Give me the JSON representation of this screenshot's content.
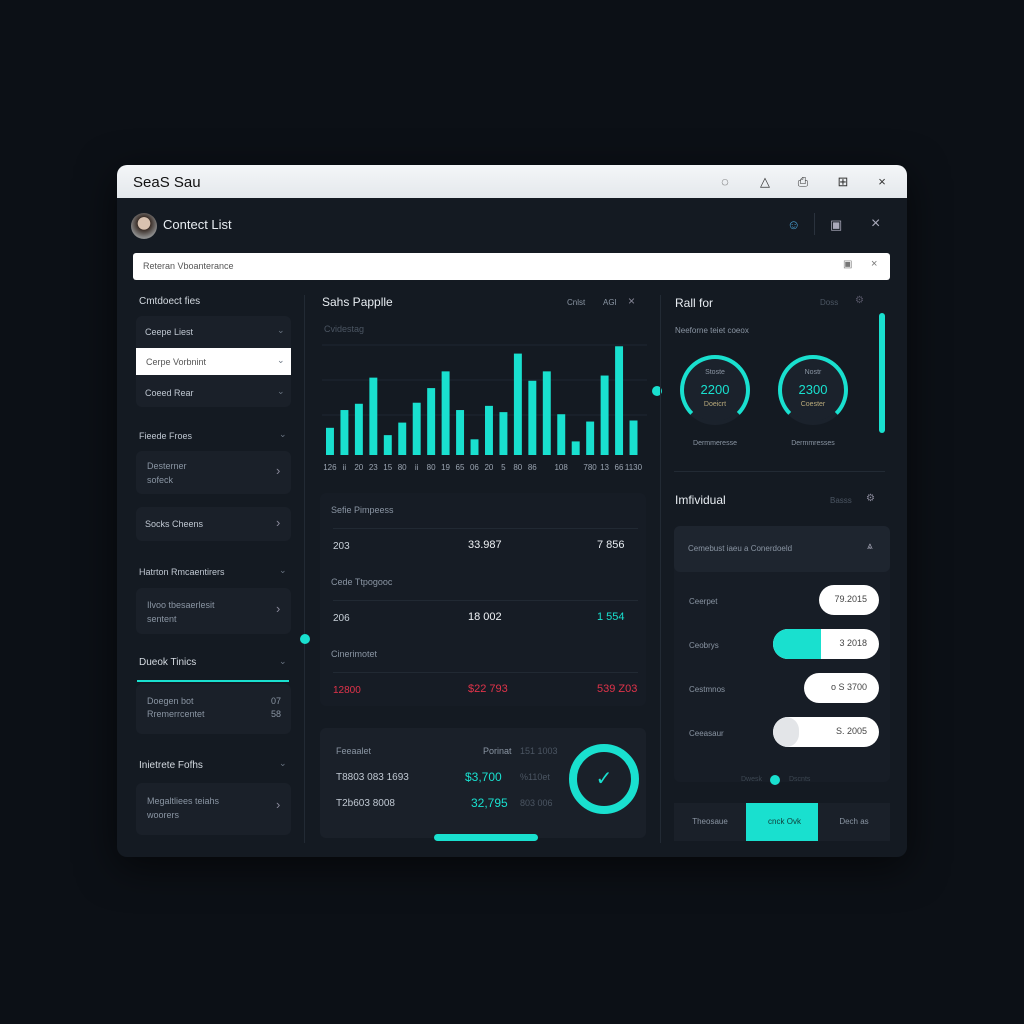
{
  "app": {
    "title": "SeaS Sau",
    "title_icons": [
      "chat-icon",
      "alert-icon",
      "share-icon",
      "add-icon",
      "close-icon"
    ]
  },
  "header": {
    "title": "Contect List",
    "icons": [
      "user-icon",
      "save-icon",
      "close-icon"
    ]
  },
  "search": {
    "value": "Reteran Vboanterance"
  },
  "sidebar": {
    "heading": "Cmtdoect fies",
    "dropdowns": [
      "Ceepe Liest",
      "Cerpe Vorbnint",
      "Coeed Rear"
    ],
    "sections": [
      {
        "title": "Fieede Froes",
        "items": [
          {
            "line1": "Desterner",
            "line2": "sofeck"
          },
          {
            "line1": "Socks Cheens",
            "line2": ""
          }
        ]
      },
      {
        "title": "Hatrton Rmcaentirers",
        "items": [
          {
            "line1": "Ilvoo tbesaerlesit",
            "line2": "sentent"
          }
        ]
      },
      {
        "title": "Dueok Tinics",
        "items": [
          {
            "line1": "Doegen bot",
            "line2": "Rremerrcentet",
            "v1": "07",
            "v2": "58"
          }
        ]
      },
      {
        "title": "Inietrete Fofhs",
        "items": [
          {
            "line1": "Megaltliees teiahs",
            "line2": "woorers"
          }
        ]
      }
    ]
  },
  "sales": {
    "title": "Sahs Papplle",
    "actions": [
      "Cnlst",
      "AGI"
    ],
    "subtitle": "Cvidestag"
  },
  "chart_data": {
    "type": "bar",
    "title": "Sahs Papplle",
    "xlabel": "",
    "ylabel": "",
    "ylim": [
      0,
      110
    ],
    "grid": true,
    "values": [
      26,
      43,
      49,
      74,
      19,
      31,
      50,
      64,
      80,
      43,
      15,
      47,
      41,
      97,
      71,
      80,
      39,
      13,
      32,
      76,
      104,
      33
    ],
    "tick_labels": [
      "126",
      "ii",
      "20",
      "23",
      "15",
      "80",
      "ii",
      "80",
      "19",
      "65",
      "06",
      "20",
      "5",
      "80",
      "86",
      "",
      "108",
      "",
      "780",
      "13",
      "66",
      "1130"
    ]
  },
  "table": {
    "rows": [
      {
        "header": "Sefie Pimpeess",
        "c1": "203",
        "c2": "33.987",
        "c3": "7 856",
        "c3_color": "#e8edf2"
      },
      {
        "header": "Cede Ttpogooc",
        "c1": "206",
        "c2": "18 002",
        "c3": "1 554",
        "c3_color": "#19e0cf"
      },
      {
        "header": "Cinerimotet",
        "c1": "12800",
        "c2": "$22 793",
        "c3": "539 Z03",
        "c3_color": "#e0334a"
      }
    ]
  },
  "summary": {
    "col1": "Feeaalet",
    "col2": "Porinat",
    "col3": "151 1003",
    "rows": [
      {
        "name": "T8803 083 1693",
        "amount": "$3,700",
        "extra": "%110et"
      },
      {
        "name": "T2b603 8008",
        "amount": "32,795",
        "extra": "803 006"
      }
    ]
  },
  "right": {
    "title": "Rall for",
    "action": "Doss",
    "subtitle": "Neeforne teiet coeox",
    "gauges": [
      {
        "top": "Stoste",
        "value": "2200",
        "bottom": "Doeicrt",
        "caption": "Dermmeresse",
        "progress": 0.7
      },
      {
        "top": "Nostr",
        "value": "2300",
        "bottom": "Coester",
        "caption": "Dermmresses",
        "progress": 0.65
      }
    ],
    "scroll_level": 0.9
  },
  "individual": {
    "title": "Imfividual",
    "action": "Basss",
    "card_title": "Cemebust iaeu a Conerdoeld",
    "rows": [
      {
        "label": "Ceerpet",
        "value": "79.2015",
        "fill": 0
      },
      {
        "label": "Ceobrys",
        "value": "3 2018",
        "fill": 0.45
      },
      {
        "label": "Cestmnos",
        "value": "o S 3700",
        "fill": 0
      },
      {
        "label": "Ceeasaur",
        "value": "S. 2005",
        "fill": 0
      }
    ],
    "slider": {
      "left": "Dwesk",
      "right": "Dscnts"
    },
    "tabs": [
      "Theosaue",
      "cnck Ovk",
      "Dech as"
    ],
    "active_tab": 1
  },
  "colors": {
    "accent": "#19e0cf",
    "negative": "#e0334a",
    "bg": "#0c1016",
    "panel": "#141a22"
  }
}
